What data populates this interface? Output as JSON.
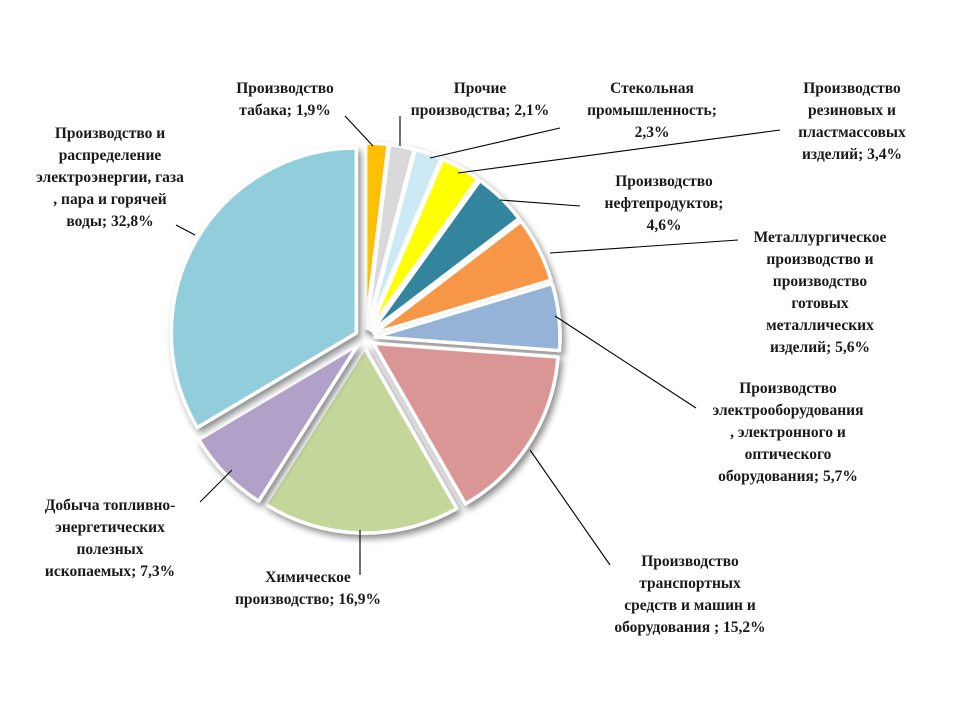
{
  "chart_data": {
    "type": "pie",
    "title": "",
    "unit": "%",
    "slices": [
      {
        "label": "Производство табака; 1,9%",
        "lines": [
          "Производство",
          "табака; 1,9%"
        ],
        "value": 1.9,
        "color": "#FFC000",
        "anchor": "middle"
      },
      {
        "label": "Прочие производства; 2,1%",
        "lines": [
          "Прочие",
          "производства; 2,1%"
        ],
        "value": 2.1,
        "color": "#D9D9D9",
        "anchor": "middle"
      },
      {
        "label": "Стекольная промышленность; 2,3%",
        "lines": [
          "Стекольная",
          "промышленность;",
          "2,3%"
        ],
        "value": 2.3,
        "color": "#CBEAF6",
        "anchor": "middle"
      },
      {
        "label": "Производство резиновых и пластмассовых изделий; 3,4%",
        "lines": [
          "Производство",
          "резиновых и",
          "пластмассовых",
          "изделий; 3,4%"
        ],
        "value": 3.4,
        "color": "#FFFF00",
        "anchor": "middle"
      },
      {
        "label": "Производство нефтепродуктов; 4,6%",
        "lines": [
          "Производство",
          "нефтепродуктов;",
          "4,6%"
        ],
        "value": 4.6,
        "color": "#31859C",
        "anchor": "middle"
      },
      {
        "label": "Металлургическое производство и производство готовых металлических изделий; 5,6%",
        "lines": [
          "Металлургическое",
          "производство и",
          "производство",
          "готовых",
          "металлических",
          "изделий; 5,6%"
        ],
        "value": 5.6,
        "color": "#F79646",
        "anchor": "middle"
      },
      {
        "label": "Производство электрооборудования , электронного и оптического оборудования; 5,7%",
        "lines": [
          "Производство",
          "электрооборудования",
          ", электронного и",
          "оптического",
          "оборудования; 5,7%"
        ],
        "value": 5.7,
        "color": "#95B3D7",
        "anchor": "middle"
      },
      {
        "label": "Производство транспортных средств и машин и оборудования ; 15,2%",
        "lines": [
          "Производство",
          "транспортных",
          "средств и машин и",
          "оборудования ; 15,2%"
        ],
        "value": 15.2,
        "color": "#DA9694",
        "anchor": "middle"
      },
      {
        "label": "Химическое производство; 16,9%",
        "lines": [
          "Химическое",
          "производство; 16,9%"
        ],
        "value": 16.9,
        "color": "#C4D79B",
        "anchor": "middle"
      },
      {
        "label": "Добыча топливно-энергетических полезных ископаемых; 7,3%",
        "lines": [
          "Добыча топливно-",
          "энергетических",
          "полезных",
          "ископаемых; 7,3%"
        ],
        "value": 7.3,
        "color": "#B1A0C7",
        "anchor": "middle"
      },
      {
        "label": "Производство и распределение электроэнергии, газа , пара и горячей воды; 32,8%",
        "lines": [
          "Производство и",
          "распределение",
          "электроэнергии, газа",
          ", пара и горячей",
          "воды; 32,8%"
        ],
        "value": 32.8,
        "color": "#92CDDC",
        "anchor": "middle"
      }
    ]
  }
}
